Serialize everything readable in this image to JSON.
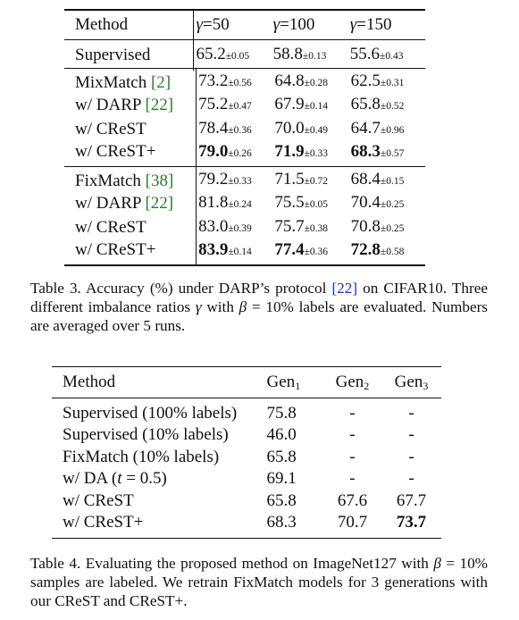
{
  "table3": {
    "header": {
      "method": "Method",
      "gamma_symbol": "γ",
      "eq": "=",
      "gammas": [
        "50",
        "100",
        "150"
      ]
    },
    "supervised": {
      "method": "Supervised",
      "cells": [
        [
          "65.2",
          "±0.05"
        ],
        [
          "58.8",
          "±0.13"
        ],
        [
          "55.6",
          "±0.43"
        ]
      ]
    },
    "mixmatch_group": [
      {
        "method": "MixMatch ",
        "cite": "[2]",
        "cells": [
          [
            "73.2",
            "±0.56"
          ],
          [
            "64.8",
            "±0.28"
          ],
          [
            "62.5",
            "±0.31"
          ]
        ]
      },
      {
        "method": "w/ DARP ",
        "cite": "[22]",
        "cells": [
          [
            "75.2",
            "±0.47"
          ],
          [
            "67.9",
            "±0.14"
          ],
          [
            "65.8",
            "±0.52"
          ]
        ]
      },
      {
        "method": "w/ CReST",
        "cite": "",
        "cells": [
          [
            "78.4",
            "±0.36"
          ],
          [
            "70.0",
            "±0.49"
          ],
          [
            "64.7",
            "±0.96"
          ]
        ]
      },
      {
        "method": "w/ CReST+",
        "cite": "",
        "cells": [
          [
            "79.0",
            "±0.26"
          ],
          [
            "71.9",
            "±0.33"
          ],
          [
            "68.3",
            "±0.57"
          ]
        ],
        "bold": [
          true,
          true,
          true
        ]
      }
    ],
    "fixmatch_group": [
      {
        "method": "FixMatch ",
        "cite": "[38]",
        "cells": [
          [
            "79.2",
            "±0.33"
          ],
          [
            "71.5",
            "±0.72"
          ],
          [
            "68.4",
            "±0.15"
          ]
        ]
      },
      {
        "method": "w/ DARP ",
        "cite": "[22]",
        "cells": [
          [
            "81.8",
            "±0.24"
          ],
          [
            "75.5",
            "±0.05"
          ],
          [
            "70.4",
            "±0.25"
          ]
        ]
      },
      {
        "method": "w/ CReST",
        "cite": "",
        "cells": [
          [
            "83.0",
            "±0.39"
          ],
          [
            "75.7",
            "±0.38"
          ],
          [
            "70.8",
            "±0.25"
          ]
        ]
      },
      {
        "method": "w/ CReST+",
        "cite": "",
        "cells": [
          [
            "83.9",
            "±0.14"
          ],
          [
            "77.4",
            "±0.36"
          ],
          [
            "72.8",
            "±0.58"
          ]
        ],
        "bold": [
          true,
          true,
          true
        ]
      }
    ]
  },
  "caption3": {
    "part1": "Table 3. Accuracy (%) under DARP’s protocol ",
    "cite": "[22]",
    "part2": " on CIFAR10. Three different imbalance ratios ",
    "gamma": "γ",
    "part3": " with ",
    "beta": "β",
    "part4": " = 10% labels are evaluated. Numbers are averaged over 5 runs."
  },
  "table4": {
    "header": {
      "method": "Method",
      "gen_base": "Gen",
      "gen_subs": [
        "1",
        "2",
        "3"
      ]
    },
    "rows": [
      {
        "method": "Supervised (100% labels)",
        "g1": "75.8",
        "g2": "-",
        "g3": "-"
      },
      {
        "method": "Supervised (10% labels)",
        "g1": "46.0",
        "g2": "-",
        "g3": "-"
      },
      {
        "method": "FixMatch (10% labels)",
        "g1": "65.8",
        "g2": "-",
        "g3": "-"
      },
      {
        "method_pre": "w/ DA (",
        "method_t": "t",
        "method_post": " = 0.5)",
        "g1": "69.1",
        "g2": "-",
        "g3": "-"
      },
      {
        "method": "w/ CReST",
        "g1": "65.8",
        "g2": "67.6",
        "g3": "67.7"
      },
      {
        "method": "w/ CReST+",
        "g1": "68.3",
        "g2": "70.7",
        "g3": "73.7",
        "g3_bold": true
      }
    ]
  },
  "caption4": {
    "part1": "Table 4. Evaluating the proposed method on ImageNet127 with ",
    "beta": "β",
    "part2": " = 10% samples are labeled. We retrain FixMatch models for 3 generations with our CReST and CReST+."
  },
  "colors": {
    "cite_green": "#2a7a2a",
    "cite_blue": "#1a2fcf"
  }
}
